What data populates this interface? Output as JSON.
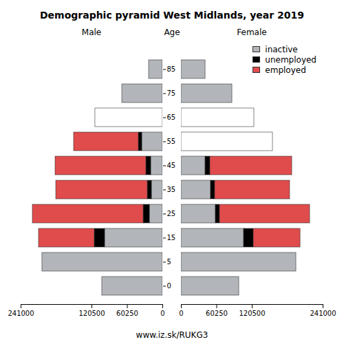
{
  "chart_data": {
    "type": "bar",
    "orientation": "horizontal",
    "stacked": true,
    "title": "Demographic pyramid West Midlands, year 2019",
    "ylabel": "Age",
    "caption": "www.iz.sk/RUKG3",
    "legend": "top-right",
    "categories": [
      "0",
      "5",
      "15",
      "25",
      "35",
      "45",
      "55",
      "65",
      "75",
      "85"
    ],
    "panels": [
      {
        "title": "Male",
        "xlim": [
          241000,
          0
        ],
        "xticks": [
          241000,
          120500,
          60250,
          0
        ],
        "series": [
          {
            "name": "inactive",
            "color": "#b2b5ba",
            "values": [
              103000,
              204800,
              98300,
              22200,
              18700,
              19900,
              35100,
              null,
              69000,
              23400
            ]
          },
          {
            "name": "unemployed",
            "color": "#000000",
            "values": [
              null,
              null,
              17600,
              10500,
              7000,
              8200,
              5850,
              null,
              null,
              null
            ]
          },
          {
            "name": "employed",
            "color": "#e04c4c",
            "values": [
              null,
              null,
              94700,
              188400,
              155600,
              154400,
              110000,
              null,
              null,
              null
            ]
          },
          {
            "name": null,
            "color": "#ffffff",
            "values": [
              null,
              null,
              null,
              null,
              null,
              null,
              null,
              114700,
              null,
              null
            ]
          }
        ]
      },
      {
        "title": "Female",
        "xlim": [
          0,
          241000
        ],
        "xticks": [
          0,
          60250,
          120500,
          241000
        ],
        "series": [
          {
            "name": "inactive",
            "color": "#b2b5ba",
            "values": [
              98300,
              195400,
              106500,
              58500,
              50300,
              41000,
              null,
              null,
              86600,
              41000
            ]
          },
          {
            "name": "unemployed",
            "color": "#000000",
            "values": [
              null,
              null,
              16400,
              7000,
              7000,
              8200,
              null,
              null,
              null,
              null
            ]
          },
          {
            "name": "employed",
            "color": "#e04c4c",
            "values": [
              null,
              null,
              79600,
              153300,
              127500,
              139200,
              null,
              null,
              null,
              null
            ]
          },
          {
            "name": null,
            "color": "#ffffff",
            "values": [
              null,
              null,
              null,
              null,
              null,
              null,
              155600,
              124000,
              null,
              null
            ]
          }
        ]
      }
    ]
  }
}
